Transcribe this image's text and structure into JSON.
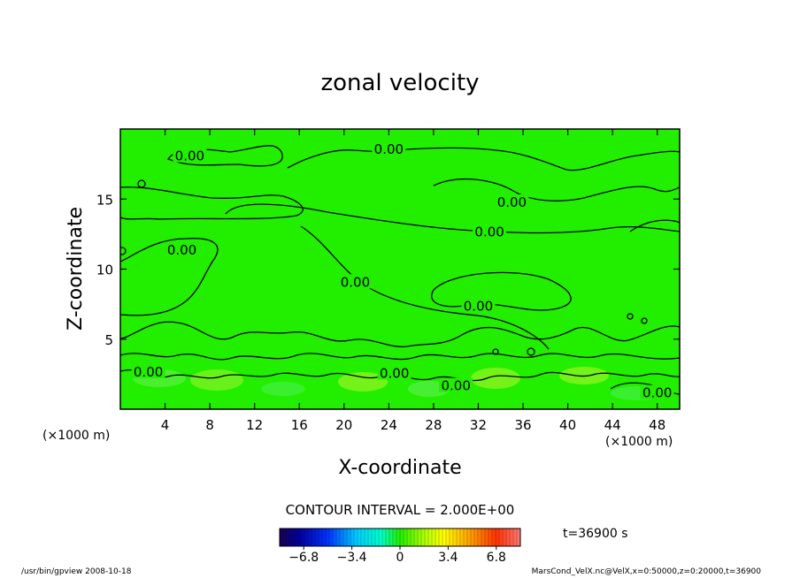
{
  "chart_data": {
    "type": "heatmap",
    "title": "zonal velocity",
    "xlabel": "X-coordinate",
    "ylabel": "Z-coordinate",
    "x_unit": "(×1000 m)",
    "y_unit": "(×1000 m)",
    "xlim": [
      0,
      50
    ],
    "ylim": [
      0,
      20
    ],
    "xticks": [
      4,
      8,
      12,
      16,
      20,
      24,
      28,
      32,
      36,
      40,
      44,
      48
    ],
    "yticks": [
      5,
      10,
      15
    ],
    "contour_interval_text": "CONTOUR INTERVAL = 2.000E+00",
    "contour_label": "0.00",
    "contour_label_positions": [
      {
        "x": 6.2,
        "y": 18.0
      },
      {
        "x": 24.0,
        "y": 18.5
      },
      {
        "x": 35.0,
        "y": 14.7
      },
      {
        "x": 33.0,
        "y": 12.6
      },
      {
        "x": 5.5,
        "y": 11.3
      },
      {
        "x": 21.0,
        "y": 9.0
      },
      {
        "x": 32.0,
        "y": 7.3
      },
      {
        "x": 2.5,
        "y": 2.6
      },
      {
        "x": 24.5,
        "y": 2.5
      },
      {
        "x": 30.0,
        "y": 1.6
      },
      {
        "x": 48.0,
        "y": 1.1
      }
    ],
    "colorbar": {
      "range": [
        -8.5,
        8.5
      ],
      "tick_labels": [
        "−6.8",
        "−3.4",
        "0",
        "3.4",
        "6.8"
      ],
      "tick_values": [
        -6.8,
        -3.4,
        0,
        3.4,
        6.8
      ],
      "colormap": "rainbow"
    },
    "time_label": "t=36900  s"
  },
  "footer": {
    "left": "/usr/bin/gpview   2008-10-18",
    "right": "MarsCond_VelX.nc@VelX,x=0:50000,z=0:20000,t=36900"
  },
  "colors": {
    "field_background": "#22ee00",
    "contour": "#000000"
  }
}
